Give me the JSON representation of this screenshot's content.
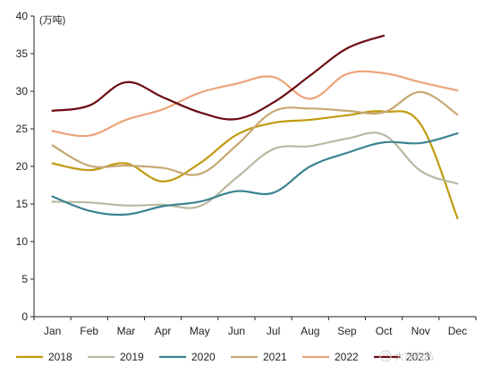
{
  "chart_data": {
    "type": "line",
    "y_unit": "(万吨)",
    "ylim": [
      0,
      40
    ],
    "y_ticks": [
      0,
      5,
      10,
      15,
      20,
      25,
      30,
      35,
      40
    ],
    "categories": [
      "Jan",
      "Feb",
      "Mar",
      "Apr",
      "May",
      "Jun",
      "Jul",
      "Aug",
      "Sep",
      "Oct",
      "Nov",
      "Dec"
    ],
    "grid": false,
    "legend_position": "bottom",
    "series": [
      {
        "name": "2018",
        "color": "#c09a0e",
        "values": [
          20.4,
          19.5,
          20.4,
          18.0,
          20.4,
          24.2,
          25.8,
          26.2,
          26.8,
          27.3,
          25.6,
          13.1
        ]
      },
      {
        "name": "2019",
        "color": "#b7b9a1",
        "values": [
          15.3,
          15.2,
          14.8,
          14.9,
          14.7,
          18.5,
          22.3,
          22.7,
          23.7,
          24.2,
          19.4,
          17.7
        ]
      },
      {
        "name": "2020",
        "color": "#3c8390",
        "values": [
          16.0,
          14.1,
          13.6,
          14.7,
          15.3,
          16.7,
          16.5,
          20.0,
          21.8,
          23.2,
          23.1,
          24.4
        ]
      },
      {
        "name": "2021",
        "color": "#c7a873",
        "values": [
          22.8,
          20.1,
          20.1,
          19.8,
          19.0,
          22.8,
          27.3,
          27.7,
          27.4,
          27.2,
          29.9,
          26.9
        ]
      },
      {
        "name": "2022",
        "color": "#eba479",
        "values": [
          24.7,
          24.1,
          26.2,
          27.6,
          29.8,
          31.0,
          31.9,
          29.0,
          32.3,
          32.4,
          31.2,
          30.1
        ]
      },
      {
        "name": "2023",
        "color": "#6b0a12",
        "values": [
          27.4,
          28.1,
          31.2,
          29.2,
          27.2,
          26.3,
          28.5,
          32.1,
          35.7,
          37.4,
          null,
          null
        ]
      }
    ]
  },
  "watermark": "大宗商品"
}
